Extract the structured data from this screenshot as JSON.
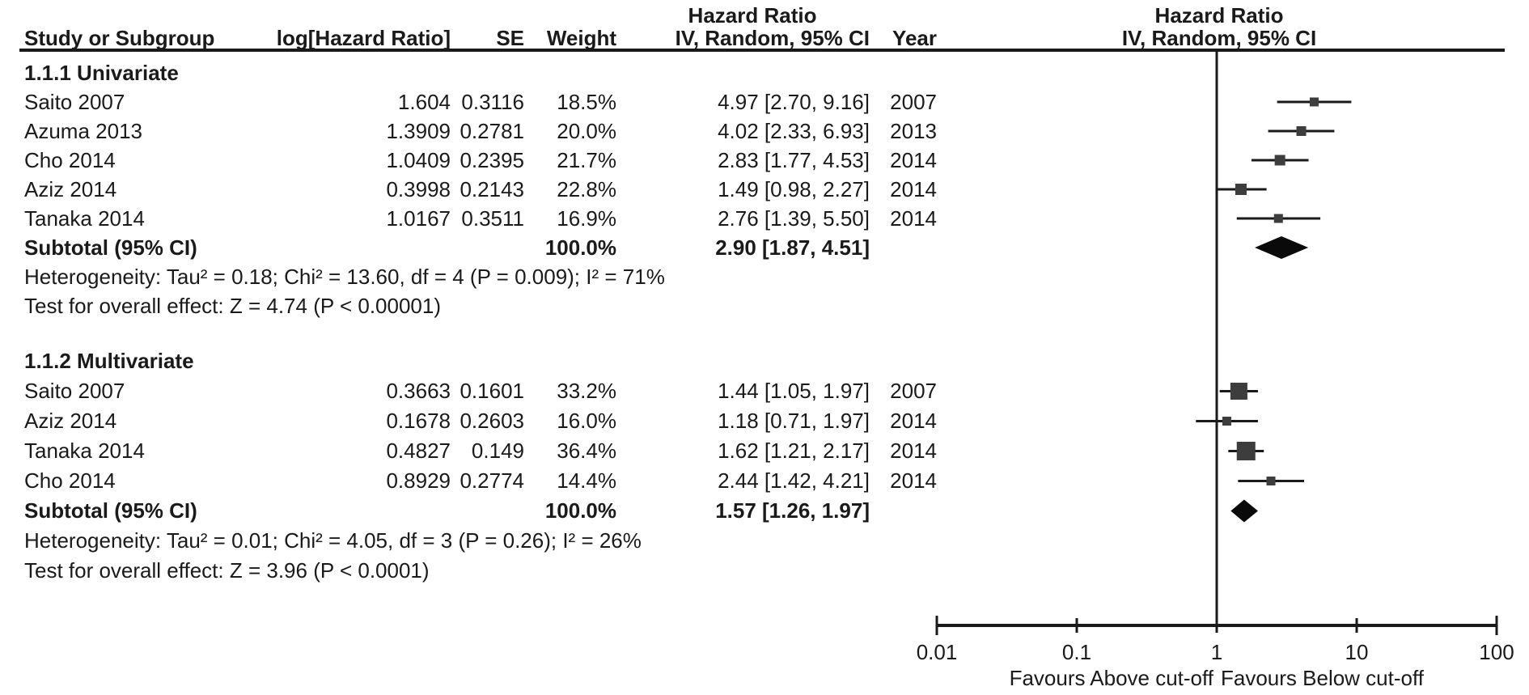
{
  "table": {
    "headers": {
      "hazard_ratio": "Hazard Ratio",
      "study": "Study or Subgroup",
      "log_hr": "log[Hazard Ratio]",
      "se": "SE",
      "weight": "Weight",
      "ci": "IV, Random, 95% CI",
      "year": "Year"
    },
    "plot_header": {
      "line1": "Hazard Ratio",
      "line2": "IV, Random, 95% CI"
    }
  },
  "chart_data": {
    "type": "forest",
    "x_scale": "log10",
    "effect_measure": "Hazard Ratio",
    "model": "IV, Random, 95% CI",
    "axis": {
      "range": [
        0.01,
        100
      ],
      "ticks": [
        0.01,
        0.1,
        1,
        10,
        100
      ],
      "tick_labels": [
        "0.01",
        "0.1",
        "1",
        "10",
        "100"
      ],
      "favours_left": "Favours Above cut-off",
      "favours_right": "Favours Below cut-off"
    },
    "colors": {
      "line": "#1a1a1a",
      "marker": "#3d3d3d",
      "diamond": "#0a0a0a"
    },
    "groups": [
      {
        "title": "1.1.1 Univariate",
        "studies": [
          {
            "label": "Saito 2007",
            "log_hr": "1.604",
            "se": "0.3116",
            "weight": "18.5%",
            "weight_pct": 18.5,
            "hr": 4.97,
            "ci_low": 2.7,
            "ci_high": 9.16,
            "ci_text": "4.97 [2.70, 9.16]",
            "year": "2007"
          },
          {
            "label": "Azuma 2013",
            "log_hr": "1.3909",
            "se": "0.2781",
            "weight": "20.0%",
            "weight_pct": 20.0,
            "hr": 4.02,
            "ci_low": 2.33,
            "ci_high": 6.93,
            "ci_text": "4.02 [2.33, 6.93]",
            "year": "2013"
          },
          {
            "label": "Cho 2014",
            "log_hr": "1.0409",
            "se": "0.2395",
            "weight": "21.7%",
            "weight_pct": 21.7,
            "hr": 2.83,
            "ci_low": 1.77,
            "ci_high": 4.53,
            "ci_text": "2.83 [1.77, 4.53]",
            "year": "2014"
          },
          {
            "label": "Aziz 2014",
            "log_hr": "0.3998",
            "se": "0.2143",
            "weight": "22.8%",
            "weight_pct": 22.8,
            "hr": 1.49,
            "ci_low": 0.98,
            "ci_high": 2.27,
            "ci_text": "1.49 [0.98, 2.27]",
            "year": "2014"
          },
          {
            "label": "Tanaka 2014",
            "log_hr": "1.0167",
            "se": "0.3511",
            "weight": "16.9%",
            "weight_pct": 16.9,
            "hr": 2.76,
            "ci_low": 1.39,
            "ci_high": 5.5,
            "ci_text": "2.76 [1.39, 5.50]",
            "year": "2014"
          }
        ],
        "subtotal": {
          "label": "Subtotal (95% CI)",
          "weight": "100.0%",
          "hr": 2.9,
          "ci_low": 1.87,
          "ci_high": 4.51,
          "ci_text": "2.90 [1.87, 4.51]"
        },
        "heterogeneity": "Heterogeneity: Tau² = 0.18; Chi² = 13.60, df = 4 (P = 0.009); I² = 71%",
        "overall_effect": "Test for overall effect: Z = 4.74 (P < 0.00001)"
      },
      {
        "title": "1.1.2 Multivariate",
        "studies": [
          {
            "label": "Saito 2007",
            "log_hr": "0.3663",
            "se": "0.1601",
            "weight": "33.2%",
            "weight_pct": 33.2,
            "hr": 1.44,
            "ci_low": 1.05,
            "ci_high": 1.97,
            "ci_text": "1.44 [1.05, 1.97]",
            "year": "2007"
          },
          {
            "label": "Aziz 2014",
            "log_hr": "0.1678",
            "se": "0.2603",
            "weight": "16.0%",
            "weight_pct": 16.0,
            "hr": 1.18,
            "ci_low": 0.71,
            "ci_high": 1.97,
            "ci_text": "1.18 [0.71, 1.97]",
            "year": "2014"
          },
          {
            "label": "Tanaka 2014",
            "log_hr": "0.4827",
            "se": "0.149",
            "weight": "36.4%",
            "weight_pct": 36.4,
            "hr": 1.62,
            "ci_low": 1.21,
            "ci_high": 2.17,
            "ci_text": "1.62 [1.21, 2.17]",
            "year": "2014"
          },
          {
            "label": "Cho 2014",
            "log_hr": "0.8929",
            "se": "0.2774",
            "weight": "14.4%",
            "weight_pct": 14.4,
            "hr": 2.44,
            "ci_low": 1.42,
            "ci_high": 4.21,
            "ci_text": "2.44 [1.42, 4.21]",
            "year": "2014"
          }
        ],
        "subtotal": {
          "label": "Subtotal (95% CI)",
          "weight": "100.0%",
          "hr": 1.57,
          "ci_low": 1.26,
          "ci_high": 1.97,
          "ci_text": "1.57 [1.26, 1.97]"
        },
        "heterogeneity": "Heterogeneity: Tau² = 0.01; Chi² = 4.05, df = 3 (P = 0.26); I² = 26%",
        "overall_effect": "Test for overall effect: Z = 3.96 (P < 0.0001)"
      }
    ]
  }
}
